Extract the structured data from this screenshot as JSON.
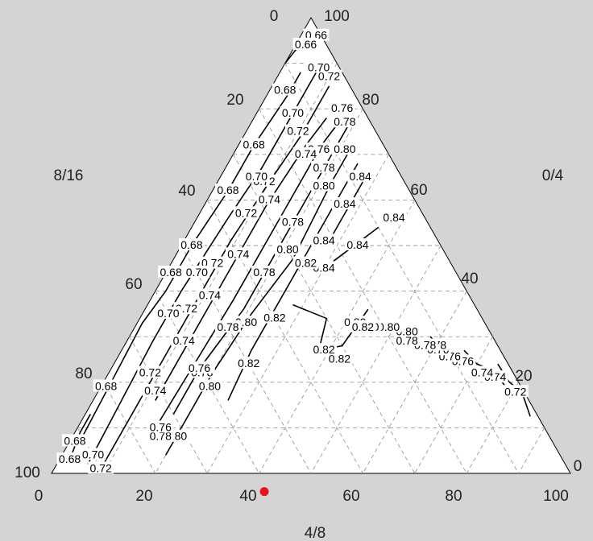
{
  "chart_data": {
    "type": "ternary-contour",
    "title": "",
    "axes": {
      "left": {
        "label": "8/16",
        "ticks": [
          "0",
          "20",
          "40",
          "60",
          "80",
          "100"
        ]
      },
      "right": {
        "label": "0/4",
        "ticks": [
          "0",
          "20",
          "40",
          "60",
          "80",
          "100"
        ]
      },
      "bottom": {
        "label": "4/8",
        "ticks": [
          "0",
          "20",
          "40",
          "60",
          "80",
          "100"
        ]
      }
    },
    "grid": true,
    "colors": {
      "background": "#d4d4d4",
      "plot": "#ffffff",
      "contour": "#000000",
      "grid": "#9a9a9a",
      "marker": "#e8141c"
    },
    "contours": [
      {
        "level": "0.72",
        "points": [
          [
            86,
            1.5
          ],
          [
            82,
            0.5
          ],
          [
            78,
            1.8
          ],
          [
            74,
            2
          ]
        ],
        "labels": [
          [
            80.5,
            1.7
          ]
        ]
      },
      {
        "level": "0.74",
        "points": [
          [
            78,
            3
          ],
          [
            74,
            3.5
          ],
          [
            70,
            6
          ],
          [
            66,
            7
          ]
        ],
        "labels": [
          [
            75,
            4
          ],
          [
            72,
            6
          ]
        ]
      },
      {
        "level": "0.76",
        "points": [
          [
            70,
            7
          ],
          [
            66,
            8
          ],
          [
            62,
            11
          ],
          [
            58,
            12
          ]
        ],
        "labels": [
          [
            67,
            8.5
          ],
          [
            64,
            10.5
          ],
          [
            61,
            12
          ]
        ]
      },
      {
        "level": "0.78",
        "points": [
          [
            62,
            11
          ],
          [
            58,
            13
          ],
          [
            54,
            16
          ],
          [
            50,
            18
          ]
        ],
        "labels": [
          [
            60,
            12
          ],
          [
            58,
            14
          ],
          [
            54,
            17
          ]
        ]
      },
      {
        "level": "0.80",
        "points": [
          [
            54,
            15
          ],
          [
            50,
            18
          ],
          [
            46,
            23
          ],
          [
            42,
            25
          ]
        ],
        "labels": [
          [
            53,
            16
          ],
          [
            49,
            19
          ],
          [
            45,
            23
          ],
          [
            42,
            25
          ]
        ]
      },
      {
        "level": "0.82",
        "points": [
          [
            43,
            21
          ],
          [
            42,
            30
          ],
          [
            38,
            35
          ],
          [
            36,
            30
          ],
          [
            28,
            35
          ]
        ],
        "labels": [
          [
            44,
            24
          ],
          [
            43,
            32
          ],
          [
            39,
            34
          ],
          [
            26,
            40
          ]
        ]
      },
      {
        "level": "0.84",
        "points": [
          [
            36,
            10
          ],
          [
            32,
            20
          ],
          [
            30,
            25
          ]
        ],
        "labels": [
          [
            38,
            6
          ],
          [
            34,
            16
          ],
          [
            30,
            25
          ]
        ]
      },
      {
        "level": "0.84",
        "points": [
          [
            28,
            8
          ],
          [
            28,
            16
          ],
          [
            28,
            22
          ]
        ],
        "labels": [
          [
            27,
            8
          ],
          [
            27,
            14
          ],
          [
            27,
            22
          ]
        ]
      },
      {
        "level": "0.82",
        "points": [
          [
            25,
            7
          ],
          [
            25,
            30
          ],
          [
            25,
            48
          ],
          [
            26,
            58
          ]
        ],
        "labels": [
          [
            26,
            28
          ],
          [
            26,
            50
          ]
        ]
      },
      {
        "level": "0.80",
        "points": [
          [
            22,
            6
          ],
          [
            22,
            14
          ],
          [
            23,
            30
          ],
          [
            21,
            44
          ],
          [
            20,
            58
          ],
          [
            20,
            76
          ]
        ],
        "labels": [
          [
            21,
            8
          ],
          [
            21,
            16
          ],
          [
            21,
            30
          ],
          [
            21,
            46
          ],
          [
            21,
            60
          ],
          [
            20,
            72
          ]
        ]
      },
      {
        "level": "0.78",
        "points": [
          [
            19,
            4
          ],
          [
            19,
            14
          ],
          [
            19,
            29
          ],
          [
            19,
            45
          ],
          [
            17,
            60
          ],
          [
            17,
            70
          ]
        ],
        "labels": [
          [
            18,
            5
          ],
          [
            19,
            14
          ],
          [
            19,
            26
          ],
          [
            19,
            37
          ],
          [
            18,
            50
          ],
          [
            18,
            60
          ],
          [
            17,
            75
          ]
        ]
      },
      {
        "level": "0.76",
        "points": [
          [
            17,
            5
          ],
          [
            16,
            12
          ],
          [
            16,
            26
          ],
          [
            16,
            46
          ],
          [
            15,
            76
          ]
        ],
        "labels": [
          [
            16,
            4
          ],
          [
            16,
            13
          ],
          [
            17,
            60
          ],
          [
            16,
            74
          ]
        ]
      },
      {
        "level": "0.74",
        "points": [
          [
            14,
            8
          ],
          [
            13,
            15
          ],
          [
            12,
            29
          ],
          [
            12,
            46
          ],
          [
            12,
            58
          ],
          [
            12,
            72
          ]
        ],
        "labels": [
          [
            14,
            16
          ],
          [
            12,
            28
          ],
          [
            12,
            40
          ],
          [
            11,
            50
          ],
          [
            11,
            60
          ],
          [
            11,
            71
          ]
        ]
      },
      {
        "level": "0.72",
        "points": [
          [
            11,
            4
          ],
          [
            11,
            15
          ],
          [
            10,
            26
          ],
          [
            9,
            40
          ],
          [
            9,
            58
          ],
          [
            9,
            70
          ],
          [
            9,
            90
          ]
        ],
        "labels": [
          [
            10,
            3
          ],
          [
            10,
            15
          ],
          [
            9,
            27
          ],
          [
            9,
            34
          ],
          [
            8,
            46
          ],
          [
            8,
            56
          ],
          [
            8,
            70
          ],
          [
            9,
            90
          ]
        ]
      },
      {
        "level": "0.70",
        "points": [
          [
            7,
            4
          ],
          [
            7,
            13
          ],
          [
            7,
            26
          ],
          [
            6,
            38
          ],
          [
            5,
            55
          ],
          [
            5,
            66
          ],
          [
            6,
            92
          ]
        ],
        "labels": [
          [
            7,
            4
          ],
          [
            7,
            14
          ],
          [
            7,
            28
          ],
          [
            6,
            50
          ],
          [
            5,
            60
          ],
          [
            6,
            90
          ]
        ]
      },
      {
        "level": "0.68",
        "points": [
          [
            4,
            8
          ],
          [
            4,
            13
          ],
          [
            3,
            25
          ],
          [
            3,
            35
          ],
          [
            2,
            48
          ],
          [
            2,
            58
          ],
          [
            1,
            66
          ],
          [
            2,
            92
          ]
        ],
        "labels": [
          [
            3,
            13
          ],
          [
            3,
            25
          ],
          [
            3,
            35
          ],
          [
            2,
            48
          ],
          [
            1,
            55
          ],
          [
            1,
            80
          ]
        ]
      },
      {
        "level": "0.66",
        "points": [
          [
            3,
            1
          ],
          [
            1,
            4
          ],
          [
            0,
            10
          ]
        ],
        "labels": [
          [
            3,
            1
          ],
          [
            2,
            4
          ]
        ]
      },
      {
        "level": "0.68",
        "points": [
          [
            1,
            86
          ],
          [
            1,
            90
          ],
          [
            2,
            95
          ]
        ],
        "labels": [
          [
            1,
            92
          ],
          [
            2,
            95
          ]
        ]
      }
    ],
    "marker": {
      "label": "",
      "bottom": 43,
      "left": 61
    }
  }
}
